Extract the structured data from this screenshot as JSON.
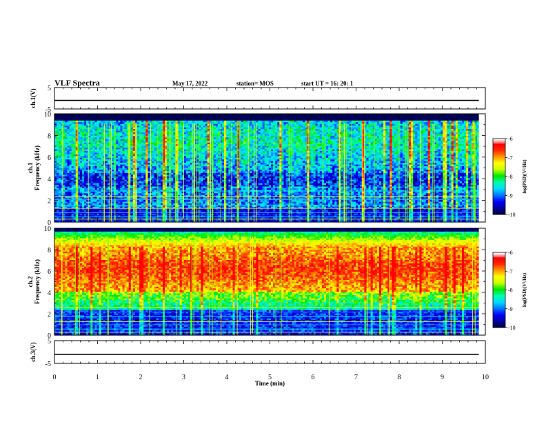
{
  "header": {
    "title": "VLF Spectra",
    "date": "May 17, 2022",
    "station": "station= MOS",
    "start": "start  UT  =   16: 20: 1"
  },
  "chart_data": [
    {
      "type": "line",
      "panel": "ch1-waveform",
      "ylabel": "ch.1(V)",
      "ylim": [
        -5,
        5
      ],
      "yticks": [
        5,
        -5
      ],
      "series": [
        {
          "values": [
            [
              0,
              -1
            ],
            [
              9.85,
              -1
            ]
          ]
        }
      ]
    },
    {
      "type": "heatmap",
      "panel": "ch1-spectrogram",
      "ylabel_line1": "ch.1",
      "ylabel_line2": "Frequency (kHz)",
      "ylim": [
        0,
        10
      ],
      "yticks": [
        0,
        2,
        4,
        6,
        8,
        10
      ],
      "xlim": [
        0,
        10
      ],
      "intensity": "broadband 1-9.3 kHz, strong vertical sferic lines, narrow bands near 0.3-3 kHz"
    },
    {
      "type": "heatmap",
      "panel": "ch2-spectrogram",
      "ylabel_line1": "ch.2",
      "ylabel_line2": "Frequency (kHz)",
      "ylim": [
        0,
        10
      ],
      "yticks": [
        0,
        2,
        4,
        6,
        8,
        10
      ],
      "xlim": [
        0,
        10
      ],
      "intensity": "intense band ~4-8 kHz, weaker 2-4 kHz, narrow bands near 0.3-2 kHz"
    },
    {
      "type": "line",
      "panel": "ch3-waveform",
      "ylabel": "ch.3(V)",
      "ylim": [
        -5,
        5
      ],
      "yticks": [
        5,
        -5
      ],
      "series": [
        {
          "values": [
            [
              0,
              -1
            ],
            [
              9.85,
              -1
            ]
          ]
        }
      ]
    }
  ],
  "xaxis": {
    "label": "Time  (min)",
    "ticks": [
      0,
      1,
      2,
      3,
      4,
      5,
      6,
      7,
      8,
      9,
      10
    ]
  },
  "colorbar": {
    "label": "log(PSD)(V²/Hz)",
    "ticks": [
      -6,
      -7,
      -8,
      -9,
      -10
    ],
    "range": [
      -10,
      -6
    ],
    "colors": [
      "#000080",
      "#0000ff",
      "#00a0ff",
      "#00ffff",
      "#00ff00",
      "#ffff00",
      "#ff8000",
      "#ff0000",
      "#ff8080",
      "#ffffff"
    ]
  }
}
